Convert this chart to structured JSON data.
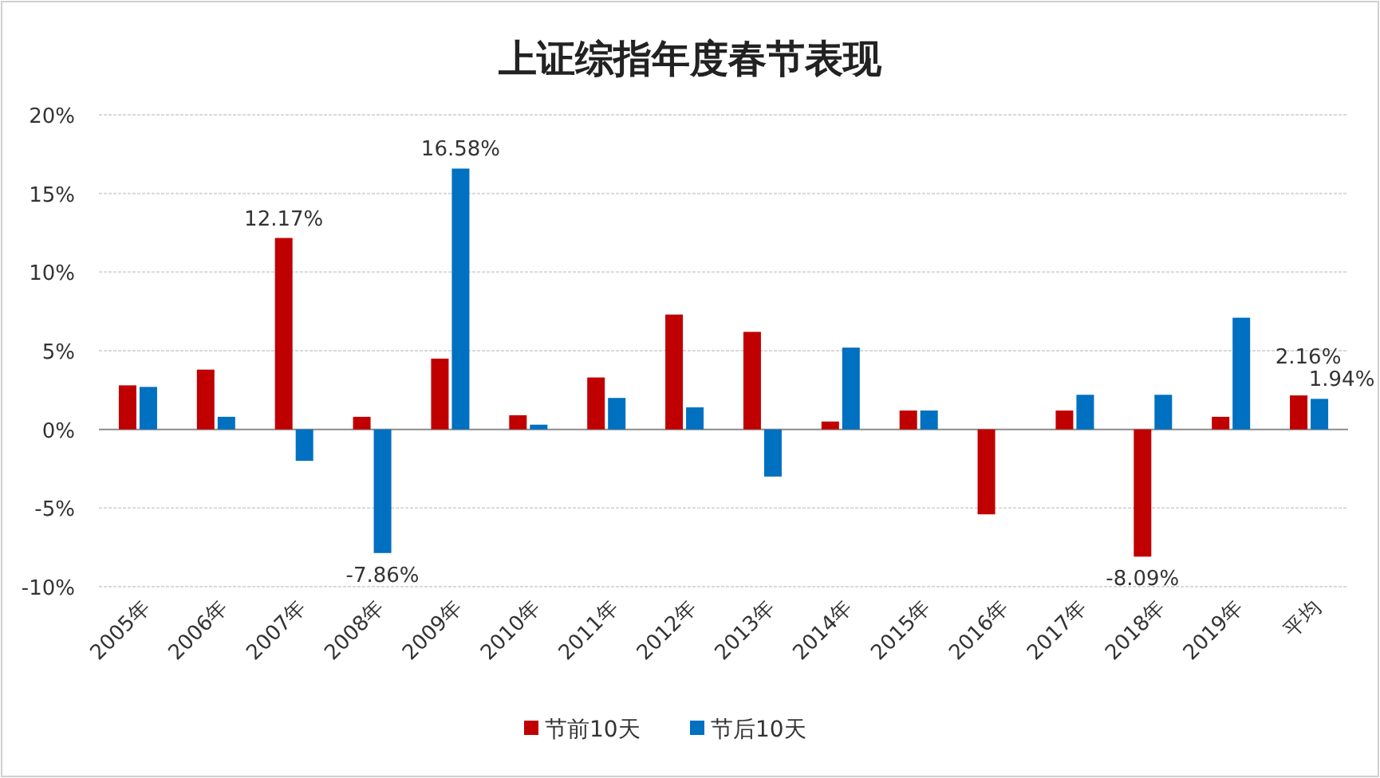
{
  "chart_data": {
    "type": "bar",
    "title": "上证综指年度春节表现",
    "categories": [
      "2005年",
      "2006年",
      "2007年",
      "2008年",
      "2009年",
      "2010年",
      "2011年",
      "2012年",
      "2013年",
      "2014年",
      "2015年",
      "2016年",
      "2017年",
      "2018年",
      "2019年",
      "平均"
    ],
    "series": [
      {
        "name": "节前10天",
        "color": "#c00000",
        "values": [
          2.8,
          3.8,
          12.17,
          0.8,
          4.5,
          0.9,
          3.3,
          7.3,
          6.2,
          0.5,
          1.2,
          -5.4,
          1.2,
          -8.09,
          0.8,
          2.16
        ],
        "value_labels": [
          null,
          null,
          "12.17%",
          null,
          null,
          null,
          null,
          null,
          null,
          null,
          null,
          null,
          null,
          "-8.09%",
          null,
          "2.16%"
        ]
      },
      {
        "name": "节后10天",
        "color": "#0070c0",
        "values": [
          2.7,
          0.8,
          -2.0,
          -7.86,
          16.58,
          0.3,
          2.0,
          1.4,
          -3.0,
          5.2,
          1.2,
          0,
          2.2,
          2.2,
          7.1,
          1.94
        ],
        "value_labels": [
          null,
          null,
          null,
          "-7.86%",
          "16.58%",
          null,
          null,
          null,
          null,
          null,
          null,
          null,
          null,
          null,
          null,
          "1.94%"
        ]
      }
    ],
    "ylim": [
      -10,
      20
    ],
    "yticks": [
      {
        "value": -10,
        "label": "-10%"
      },
      {
        "value": -5,
        "label": "-5%"
      },
      {
        "value": 0,
        "label": "0%"
      },
      {
        "value": 5,
        "label": "5%"
      },
      {
        "value": 10,
        "label": "10%"
      },
      {
        "value": 15,
        "label": "15%"
      },
      {
        "value": 20,
        "label": "20%"
      }
    ],
    "grid": "y",
    "legend": "bottom"
  }
}
